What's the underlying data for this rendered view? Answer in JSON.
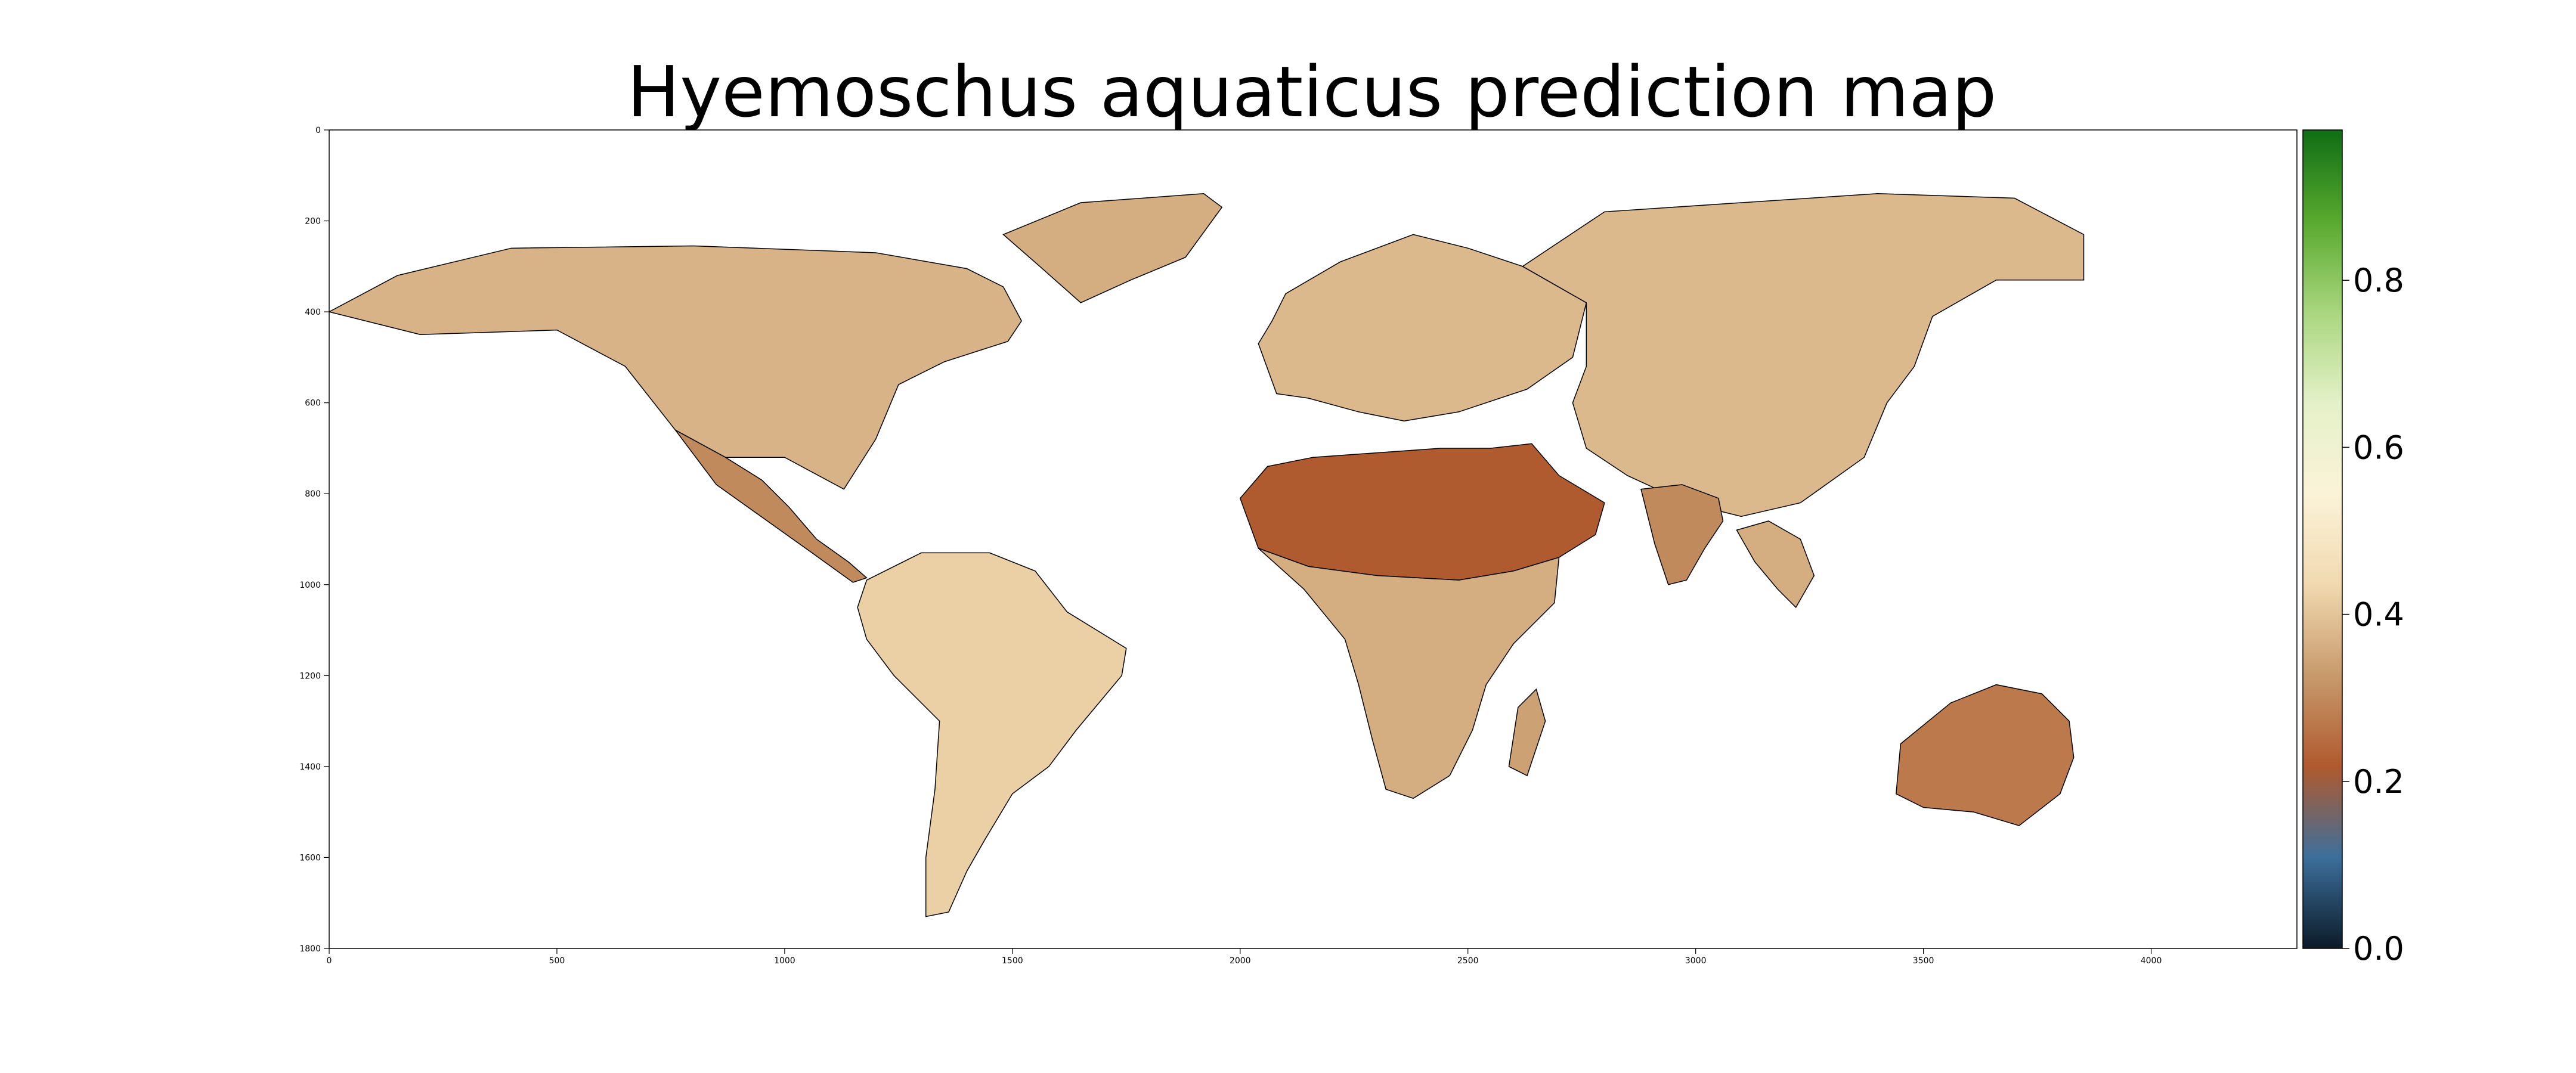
{
  "title": "Hyemoschus aquaticus prediction map",
  "chart_data": {
    "type": "heatmap",
    "title": "Hyemoschus aquaticus prediction map",
    "x_axis": {
      "ticks": [
        0,
        500,
        1000,
        1500,
        2000,
        2500,
        3000,
        3500,
        4000
      ],
      "range": [
        0,
        4320
      ]
    },
    "y_axis": {
      "ticks": [
        0,
        200,
        400,
        600,
        800,
        1000,
        1200,
        1400,
        1600,
        1800
      ],
      "range": [
        0,
        1800
      ],
      "inverted": true
    },
    "colorbar": {
      "ticks": [
        0.0,
        0.2,
        0.4,
        0.6,
        0.8
      ],
      "tick_labels": [
        "0.0",
        "0.2",
        "0.4",
        "0.6",
        "0.8"
      ],
      "range": [
        0,
        0.98
      ],
      "colors": [
        "#0b1a27",
        "#3d6f9c",
        "#b05a2e",
        "#c79a6c",
        "#f1d9b0",
        "#fbf3d8",
        "#e4f1c8",
        "#a9d67f",
        "#58a92e",
        "#0f6d14"
      ]
    },
    "regions": [
      {
        "name": "North America",
        "level": 0.37
      },
      {
        "name": "Greenland",
        "level": 0.36
      },
      {
        "name": "Central America",
        "level": 0.3
      },
      {
        "name": "South America",
        "level": 0.42
      },
      {
        "name": "Europe",
        "level": 0.38
      },
      {
        "name": "Asia",
        "level": 0.38
      },
      {
        "name": "Sahara / Arabia",
        "level": 0.22
      },
      {
        "name": "Sub-Saharan Africa",
        "level": 0.36
      },
      {
        "name": "Madagascar",
        "level": 0.34
      },
      {
        "name": "India",
        "level": 0.3
      },
      {
        "name": "Southeast Asia",
        "level": 0.36
      },
      {
        "name": "Australia",
        "level": 0.27
      }
    ]
  }
}
